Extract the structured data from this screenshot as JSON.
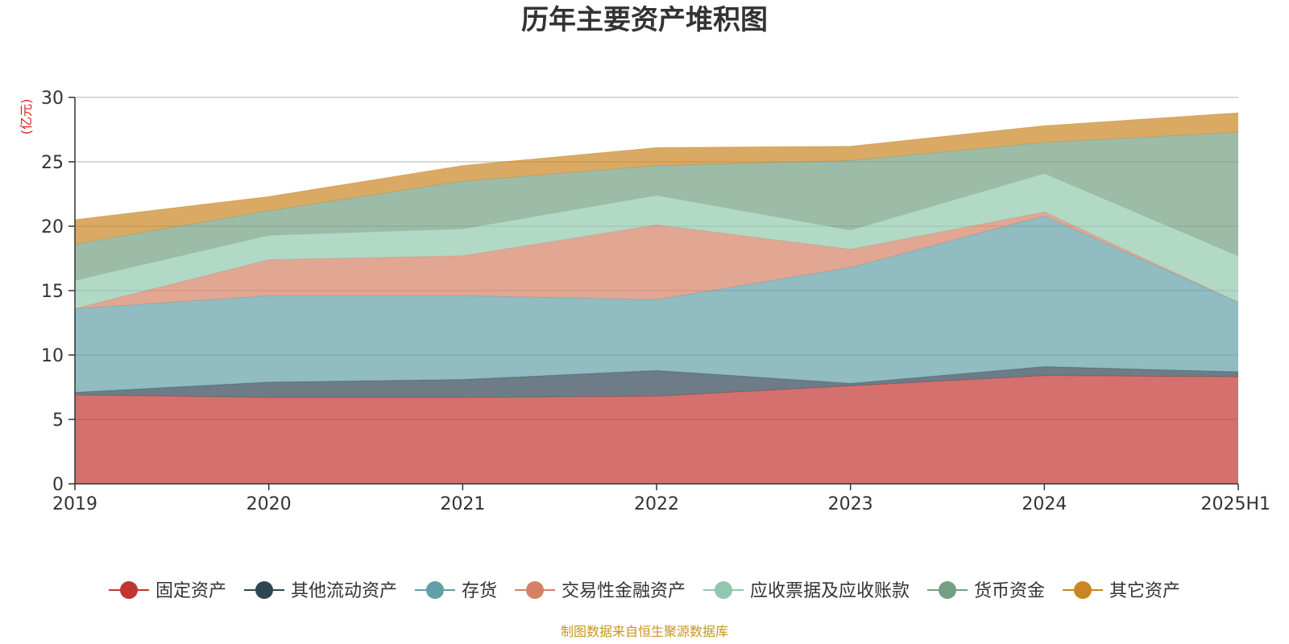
{
  "chart_data": {
    "type": "area",
    "stacked": true,
    "title": "历年主要资产堆积图",
    "y_unit": "(亿元)",
    "source": "制图数据来自恒生聚源数据库",
    "categories": [
      "2019",
      "2020",
      "2021",
      "2022",
      "2023",
      "2024",
      "2025H1"
    ],
    "ylim": [
      0,
      30
    ],
    "yticks": [
      0,
      5,
      10,
      15,
      20,
      25,
      30
    ],
    "grid": true,
    "legend_position": "bottom",
    "series": [
      {
        "name": "固定资产",
        "color": "#c23531",
        "values": [
          6.9,
          6.7,
          6.7,
          6.8,
          7.6,
          8.4,
          8.3
        ]
      },
      {
        "name": "其他流动资产",
        "color": "#2f4554",
        "values": [
          0.2,
          1.2,
          1.4,
          2.0,
          0.2,
          0.7,
          0.4
        ]
      },
      {
        "name": "存货",
        "color": "#61a0a8",
        "values": [
          6.5,
          6.7,
          6.5,
          5.5,
          9.0,
          11.7,
          5.4
        ]
      },
      {
        "name": "交易性金融资产",
        "color": "#d48265",
        "values": [
          0.0,
          2.8,
          3.1,
          5.8,
          1.4,
          0.3,
          0.0
        ]
      },
      {
        "name": "应收票据及应收账款",
        "color": "#91c7ae",
        "values": [
          2.2,
          1.9,
          2.1,
          2.3,
          1.5,
          3.0,
          3.6
        ]
      },
      {
        "name": "货币资金",
        "color": "#749f83",
        "values": [
          2.8,
          1.9,
          3.7,
          2.3,
          5.4,
          2.4,
          9.6
        ]
      },
      {
        "name": "其它资产",
        "color": "#ca8622",
        "values": [
          1.9,
          1.1,
          1.2,
          1.4,
          1.1,
          1.3,
          1.5
        ]
      }
    ]
  }
}
